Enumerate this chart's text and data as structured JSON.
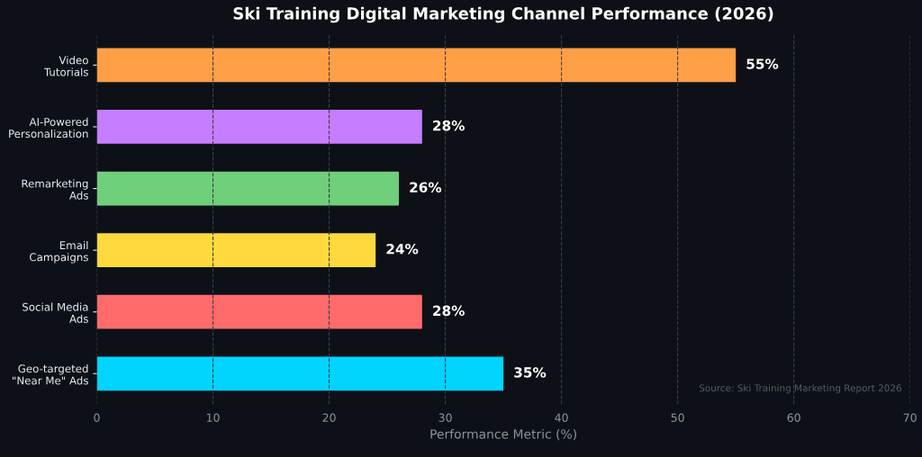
{
  "chart_data": {
    "type": "bar",
    "orientation": "horizontal",
    "title": "Ski Training Digital Marketing Channel Performance (2026)",
    "xlabel": "Performance Metric (%)",
    "categories": [
      "Video\nTutorials",
      "AI-Powered\nPersonalization",
      "Remarketing\nAds",
      "Email\nCampaigns",
      "Social Media\nAds",
      "Geo-targeted\n\"Near Me\" Ads"
    ],
    "values": [
      55,
      28,
      26,
      24,
      28,
      35
    ],
    "colors": [
      "#ffa047",
      "#c77dff",
      "#6fcf7a",
      "#ffd93d",
      "#ff6b6b",
      "#00d4ff"
    ],
    "value_labels": [
      "55%",
      "28%",
      "26%",
      "24%",
      "28%",
      "35%"
    ],
    "xlim": [
      0,
      70
    ],
    "xticks": [
      0,
      10,
      20,
      30,
      40,
      50,
      60,
      70
    ],
    "grid": "x",
    "annotations": [
      "Source: Ski Training Marketing Report 2026"
    ]
  }
}
